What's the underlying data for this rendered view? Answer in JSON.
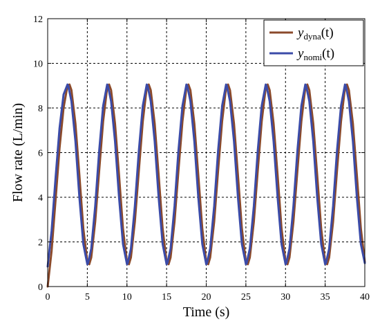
{
  "chart_data": {
    "type": "line",
    "xlabel": "Time (s)",
    "ylabel": "Flow rate (L/min)",
    "xlim": [
      0,
      40
    ],
    "ylim": [
      0,
      12
    ],
    "xticks": [
      0,
      5,
      10,
      15,
      20,
      25,
      30,
      35,
      40
    ],
    "yticks": [
      0,
      2,
      4,
      6,
      8,
      10,
      12
    ],
    "grid": true,
    "legend_position": "top-right",
    "series": [
      {
        "name": "y_dyna(t)",
        "legend_main": "y",
        "legend_sub": "dyna",
        "legend_suffix": "(t)",
        "color": "#8B4A2B",
        "x": [
          0,
          0.5,
          1.0,
          1.5,
          2.0,
          2.5,
          2.75,
          3.0,
          3.5,
          4.0,
          4.5,
          5.0,
          5.25,
          5.5,
          6.0,
          6.5,
          7.0,
          7.5,
          7.75,
          8.0,
          8.5,
          9.0,
          9.5,
          10.0,
          10.25,
          10.5,
          11.0,
          11.5,
          12.0,
          12.5,
          12.75,
          13.0,
          13.5,
          14.0,
          14.5,
          15.0,
          15.25,
          15.5,
          16.0,
          16.5,
          17.0,
          17.5,
          17.75,
          18.0,
          18.5,
          19.0,
          19.5,
          20.0,
          20.25,
          20.5,
          21.0,
          21.5,
          22.0,
          22.5,
          22.75,
          23.0,
          23.5,
          24.0,
          24.5,
          25.0,
          25.25,
          25.5,
          26.0,
          26.5,
          27.0,
          27.5,
          27.75,
          28.0,
          28.5,
          29.0,
          29.5,
          30.0,
          30.25,
          30.5,
          31.0,
          31.5,
          32.0,
          32.5,
          32.75,
          33.0,
          33.5,
          34.0,
          34.5,
          35.0,
          35.25,
          35.5,
          36.0,
          36.5,
          37.0,
          37.5,
          37.75,
          38.0,
          38.5,
          39.0,
          39.5,
          40.0
        ],
        "y": [
          0.0,
          1.6,
          3.9,
          6.2,
          8.0,
          9.0,
          9.05,
          8.8,
          7.3,
          5.0,
          2.6,
          1.1,
          1.0,
          1.3,
          2.9,
          5.2,
          7.4,
          8.9,
          9.05,
          8.8,
          7.3,
          5.0,
          2.6,
          1.1,
          1.0,
          1.3,
          2.9,
          5.2,
          7.4,
          8.9,
          9.05,
          8.8,
          7.3,
          5.0,
          2.6,
          1.1,
          1.0,
          1.3,
          2.9,
          5.2,
          7.4,
          8.9,
          9.05,
          8.8,
          7.3,
          5.0,
          2.6,
          1.1,
          1.0,
          1.3,
          2.9,
          5.2,
          7.4,
          8.9,
          9.05,
          8.8,
          7.3,
          5.0,
          2.6,
          1.1,
          1.0,
          1.3,
          2.9,
          5.2,
          7.4,
          8.9,
          9.05,
          8.8,
          7.3,
          5.0,
          2.6,
          1.1,
          1.0,
          1.3,
          2.9,
          5.2,
          7.4,
          8.9,
          9.05,
          8.8,
          7.3,
          5.0,
          2.6,
          1.1,
          1.0,
          1.3,
          2.9,
          5.2,
          7.4,
          8.9,
          9.05,
          8.8,
          7.3,
          5.0,
          2.6,
          1.1
        ]
      },
      {
        "name": "y_nomi(t)",
        "legend_main": "y",
        "legend_sub": "nomi",
        "legend_suffix": "(t)",
        "color": "#3B4BA8",
        "x": [
          0,
          0.5,
          1.0,
          1.5,
          2.0,
          2.5,
          2.6,
          3.0,
          3.5,
          4.0,
          4.5,
          5.0,
          5.1,
          5.5,
          6.0,
          6.5,
          7.0,
          7.5,
          7.6,
          8.0,
          8.5,
          9.0,
          9.5,
          10.0,
          10.1,
          10.5,
          11.0,
          11.5,
          12.0,
          12.5,
          12.6,
          13.0,
          13.5,
          14.0,
          14.5,
          15.0,
          15.1,
          15.5,
          16.0,
          16.5,
          17.0,
          17.5,
          17.6,
          18.0,
          18.5,
          19.0,
          19.5,
          20.0,
          20.1,
          20.5,
          21.0,
          21.5,
          22.0,
          22.5,
          22.6,
          23.0,
          23.5,
          24.0,
          24.5,
          25.0,
          25.1,
          25.5,
          26.0,
          26.5,
          27.0,
          27.5,
          27.6,
          28.0,
          28.5,
          29.0,
          29.5,
          30.0,
          30.1,
          30.5,
          31.0,
          31.5,
          32.0,
          32.5,
          32.6,
          33.0,
          33.5,
          34.0,
          34.5,
          35.0,
          35.1,
          35.5,
          36.0,
          36.5,
          37.0,
          37.5,
          37.6,
          38.0,
          38.5,
          39.0,
          39.5,
          40.0
        ],
        "y": [
          0.9,
          2.5,
          4.9,
          7.1,
          8.6,
          9.05,
          9.0,
          8.3,
          6.5,
          4.0,
          1.9,
          1.0,
          1.05,
          1.7,
          3.6,
          6.1,
          8.1,
          9.05,
          9.0,
          8.3,
          6.5,
          4.0,
          1.9,
          1.0,
          1.05,
          1.7,
          3.6,
          6.1,
          8.1,
          9.05,
          9.0,
          8.3,
          6.5,
          4.0,
          1.9,
          1.0,
          1.05,
          1.7,
          3.6,
          6.1,
          8.1,
          9.05,
          9.0,
          8.3,
          6.5,
          4.0,
          1.9,
          1.0,
          1.05,
          1.7,
          3.6,
          6.1,
          8.1,
          9.05,
          9.0,
          8.3,
          6.5,
          4.0,
          1.9,
          1.0,
          1.05,
          1.7,
          3.6,
          6.1,
          8.1,
          9.05,
          9.0,
          8.3,
          6.5,
          4.0,
          1.9,
          1.0,
          1.05,
          1.7,
          3.6,
          6.1,
          8.1,
          9.05,
          9.0,
          8.3,
          6.5,
          4.0,
          1.9,
          1.0,
          1.05,
          1.7,
          3.6,
          6.1,
          8.1,
          9.05,
          9.0,
          8.3,
          6.5,
          4.0,
          1.9,
          1.05
        ]
      }
    ]
  }
}
